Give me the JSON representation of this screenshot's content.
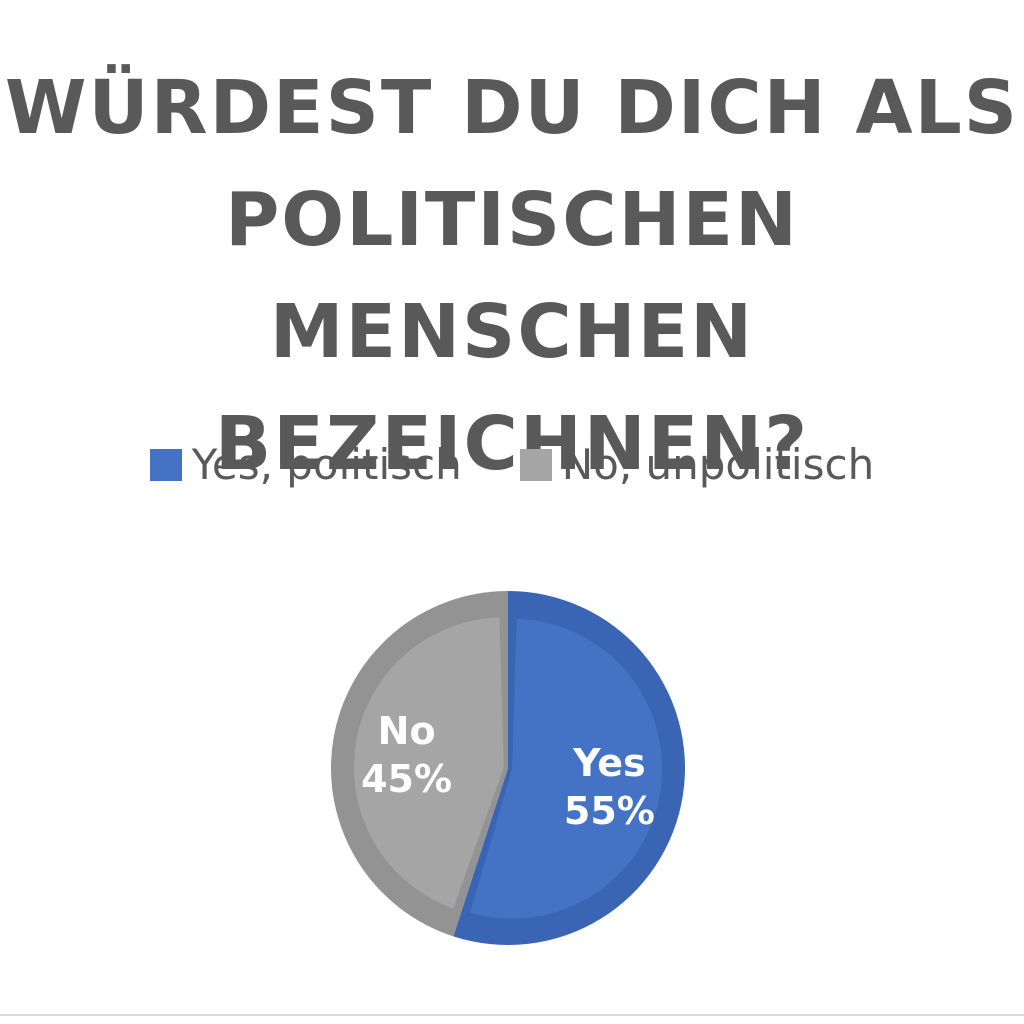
{
  "chart_data": {
    "type": "pie",
    "title_lines": [
      "WÜRDEST DU DICH ALS",
      "POLITISCHEN MENSCHEN",
      "BEZEICHNEN?"
    ],
    "legend_position": "top",
    "slices": [
      {
        "legend": "Yes, politisch",
        "label": "Yes",
        "percent_label": "55%",
        "value": 55,
        "color": "#4472C4",
        "shade": "#3A65B5"
      },
      {
        "legend": "No, unpolitisch",
        "label": "No",
        "percent_label": "45%",
        "value": 45,
        "color": "#A5A5A5",
        "shade": "#939393"
      }
    ]
  }
}
